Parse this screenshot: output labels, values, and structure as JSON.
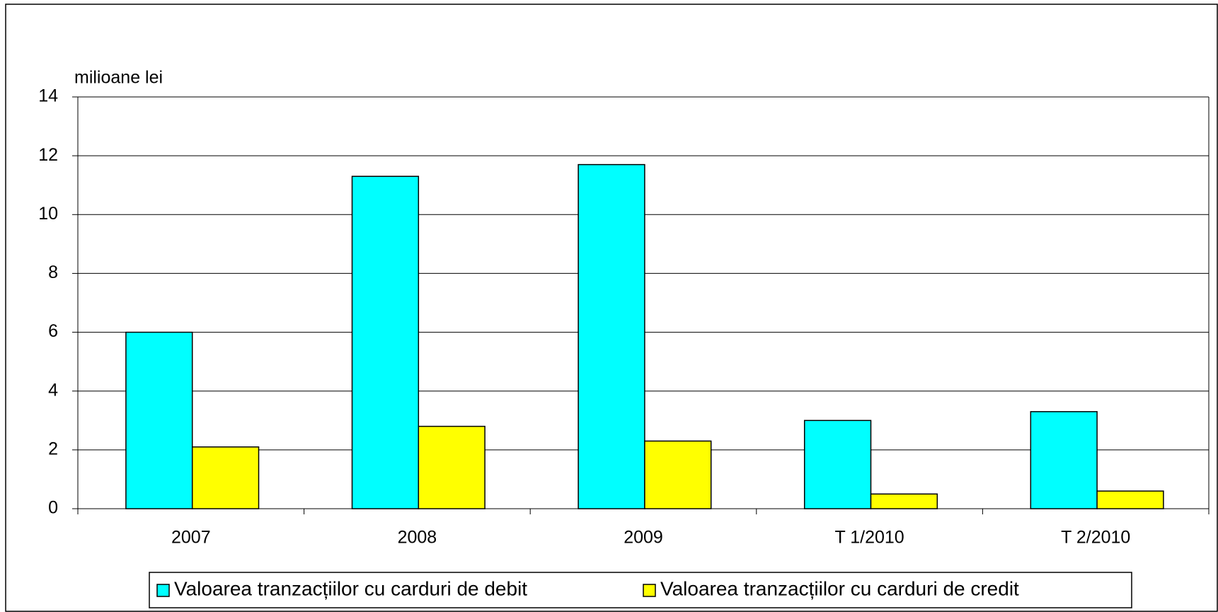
{
  "chart_data": {
    "type": "bar",
    "y_axis_label": "milioane lei",
    "categories": [
      "2007",
      "2008",
      "2009",
      "T 1/2010",
      "T 2/2010"
    ],
    "series": [
      {
        "name": "Valoarea tranzacțiilor cu carduri de debit",
        "color": "#00ffff",
        "values": [
          6.0,
          11.3,
          11.7,
          3.0,
          3.3
        ]
      },
      {
        "name": "Valoarea tranzacțiilor cu carduri de credit",
        "color": "#ffff00",
        "values": [
          2.1,
          2.8,
          2.3,
          0.5,
          0.6
        ]
      }
    ],
    "ylim": [
      0,
      14
    ],
    "yticks": [
      0,
      2,
      4,
      6,
      8,
      10,
      12,
      14
    ],
    "grid": true,
    "legend": "bottom"
  }
}
